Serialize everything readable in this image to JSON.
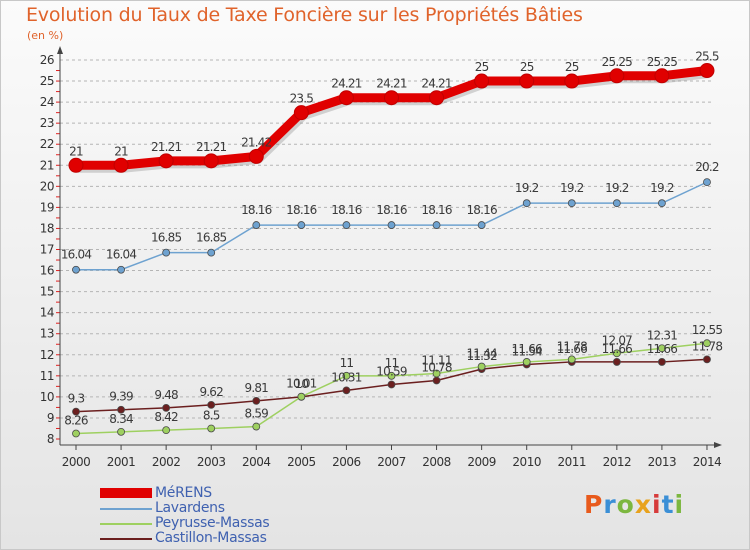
{
  "title": "Evolution du Taux de Taxe Foncière sur les Propriétés Bâties",
  "unit": "(en %)",
  "colors": {
    "title": "#e0632b",
    "legend_text": "#3f61b0",
    "axis": "#444444",
    "grid": "#b5b5b5"
  },
  "logo": {
    "text": "Proxiti",
    "letter_colors": [
      "#e85a1c",
      "#3b8fd6",
      "#7cb73f",
      "#e8a21c",
      "#d63b3b",
      "#3b8fd6",
      "#7cb73f"
    ]
  },
  "chart_data": {
    "type": "line",
    "categories": [
      "2000",
      "2001",
      "2002",
      "2003",
      "2004",
      "2005",
      "2006",
      "2007",
      "2008",
      "2009",
      "2010",
      "2011",
      "2012",
      "2013",
      "2014"
    ],
    "ylim": [
      8,
      26
    ],
    "yticks": [
      "8",
      "9",
      "10",
      "11",
      "12",
      "13",
      "14",
      "15",
      "16",
      "17",
      "18",
      "19",
      "20",
      "21",
      "22",
      "23",
      "24",
      "25",
      "26"
    ],
    "grid": "horizontal dashed",
    "legend_position": "bottom-left",
    "series": [
      {
        "name": "MéRENS",
        "color": "#e00000",
        "values": [
          21,
          21,
          21.21,
          21.21,
          21.42,
          23.5,
          24.21,
          24.21,
          24.21,
          25,
          25,
          25,
          25.25,
          25.25,
          25.5
        ],
        "labels": [
          "21",
          "21",
          "21.21",
          "21.21",
          "21.42",
          "23.5",
          "24.21",
          "24.21",
          "24.21",
          "25",
          "25",
          "25",
          "25.25",
          "25.25",
          "25.5"
        ]
      },
      {
        "name": "Lavardens",
        "color": "#6ea2d0",
        "values": [
          16.04,
          16.04,
          16.85,
          16.85,
          18.16,
          18.16,
          18.16,
          18.16,
          18.16,
          18.16,
          19.2,
          19.2,
          19.2,
          19.2,
          20.2
        ],
        "labels": [
          "16.04",
          "16.04",
          "16.85",
          "16.85",
          "18.16",
          "18.16",
          "18.16",
          "18.16",
          "18.16",
          "18.16",
          "19.2",
          "19.2",
          "19.2",
          "19.2",
          "20.2"
        ]
      },
      {
        "name": "Peyrusse-Massas",
        "color": "#9ed060",
        "values": [
          8.26,
          8.34,
          8.42,
          8.5,
          8.59,
          10.01,
          11,
          11,
          11.11,
          11.44,
          11.66,
          11.78,
          12.07,
          12.31,
          12.55
        ],
        "labels": [
          "8.26",
          "8.34",
          "8.42",
          "8.5",
          "8.59",
          "10.01",
          "11",
          "11",
          "11.11",
          "11.44",
          "11.66",
          "11.78",
          "12.07",
          "12.31",
          "12.55"
        ]
      },
      {
        "name": "Castillon-Massas",
        "color": "#6b1f1f",
        "values": [
          9.3,
          9.39,
          9.48,
          9.62,
          9.81,
          10,
          10.31,
          10.59,
          10.78,
          11.32,
          11.54,
          11.66,
          11.66,
          11.66,
          11.78
        ],
        "labels": [
          "9.3",
          "9.39",
          "9.48",
          "9.62",
          "9.81",
          "10",
          "10.31",
          "10.59",
          "10.78",
          "11.32",
          "11.54",
          "11.66",
          "11.66",
          "11.66",
          "11.78"
        ]
      }
    ]
  }
}
